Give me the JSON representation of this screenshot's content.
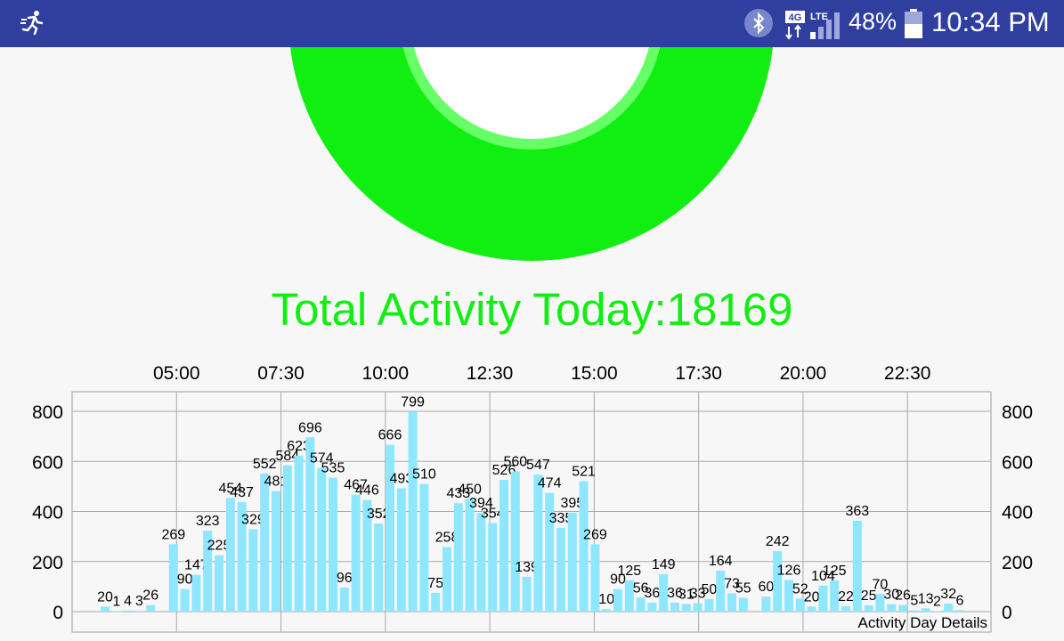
{
  "status_bar": {
    "app_icon": "running-person-icon",
    "bluetooth_icon": "bluetooth-icon",
    "network_badge": "4G",
    "network_type": "LTE",
    "battery_percent": "48%",
    "time": "10:34 PM"
  },
  "total": {
    "label": "Total Activity Today:",
    "value": "18169"
  },
  "colors": {
    "ring": "#11ee11",
    "ring_inner": "#66ff66",
    "bars": "#8ee7ff",
    "title": "#11ee11",
    "status_bar": "#303f9f"
  },
  "chart_data": {
    "type": "bar",
    "time_labels": [
      "05:00",
      "07:30",
      "10:00",
      "12:30",
      "15:00",
      "17:30",
      "20:00",
      "22:30"
    ],
    "ylim": [
      0,
      800
    ],
    "yticks": [
      0,
      200,
      400,
      600,
      800
    ],
    "grid": true,
    "values": [
      20,
      1,
      4,
      3,
      26,
      null,
      269,
      90,
      147,
      323,
      225,
      454,
      437,
      329,
      552,
      481,
      584,
      623,
      696,
      574,
      535,
      96,
      467,
      446,
      352,
      666,
      493,
      799,
      510,
      75,
      258,
      433,
      450,
      394,
      354,
      526,
      560,
      139,
      547,
      474,
      335,
      395,
      521,
      269,
      10,
      90,
      125,
      56,
      36,
      149,
      36,
      31,
      33,
      50,
      164,
      73,
      55,
      null,
      60,
      242,
      126,
      52,
      20,
      104,
      125,
      22,
      363,
      25,
      70,
      30,
      26,
      5,
      13,
      2,
      32,
      6
    ],
    "footer": "Activity Day Details"
  }
}
